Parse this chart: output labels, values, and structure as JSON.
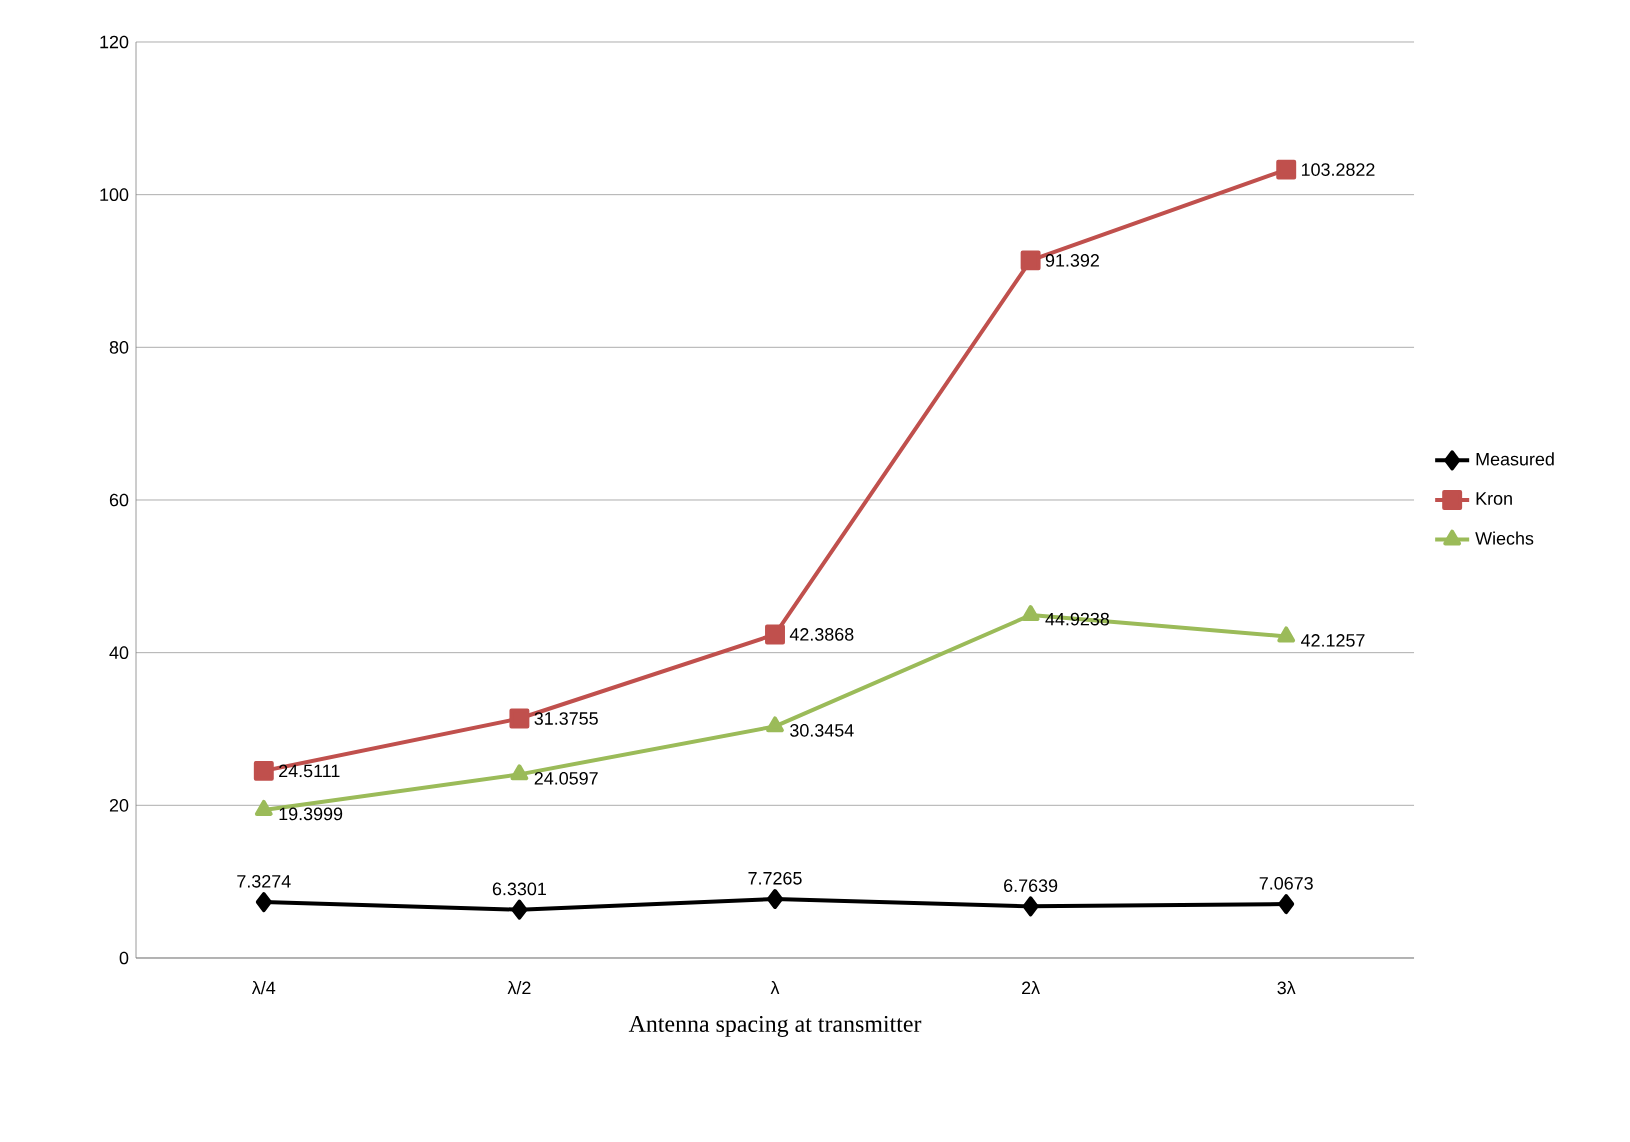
{
  "chart_data": {
    "type": "line",
    "xlabel": "Antenna spacing at transmitter",
    "categories": [
      "λ/4",
      "λ/2",
      "λ",
      "2λ",
      "3λ"
    ],
    "series": [
      {
        "name": "Measured",
        "color": "#000000",
        "marker": "diamond",
        "values": [
          7.3274,
          6.3301,
          7.7265,
          6.7639,
          7.0673
        ],
        "value_labels": [
          "7.3274",
          "6.3301",
          "7.7265",
          "6.7639",
          "7.0673"
        ]
      },
      {
        "name": "Kron",
        "color": "#c0504d",
        "marker": "square",
        "values": [
          24.5111,
          31.3755,
          42.3868,
          91.392,
          103.2822
        ],
        "value_labels": [
          "24.5111",
          "31.3755",
          "42.3868",
          "91.392",
          "103.2822"
        ]
      },
      {
        "name": "Wiechs",
        "color": "#9bbb59",
        "marker": "triangle",
        "values": [
          19.3999,
          24.0597,
          30.3454,
          44.9238,
          42.1257
        ],
        "value_labels": [
          "19.3999",
          "24.0597",
          "30.3454",
          "44.9238",
          "42.1257"
        ]
      }
    ],
    "ylim": [
      0,
      120
    ],
    "yticks": [
      0,
      20,
      40,
      60,
      80,
      100,
      120
    ],
    "grid": "y",
    "legend": "right",
    "line_style": "solid"
  }
}
